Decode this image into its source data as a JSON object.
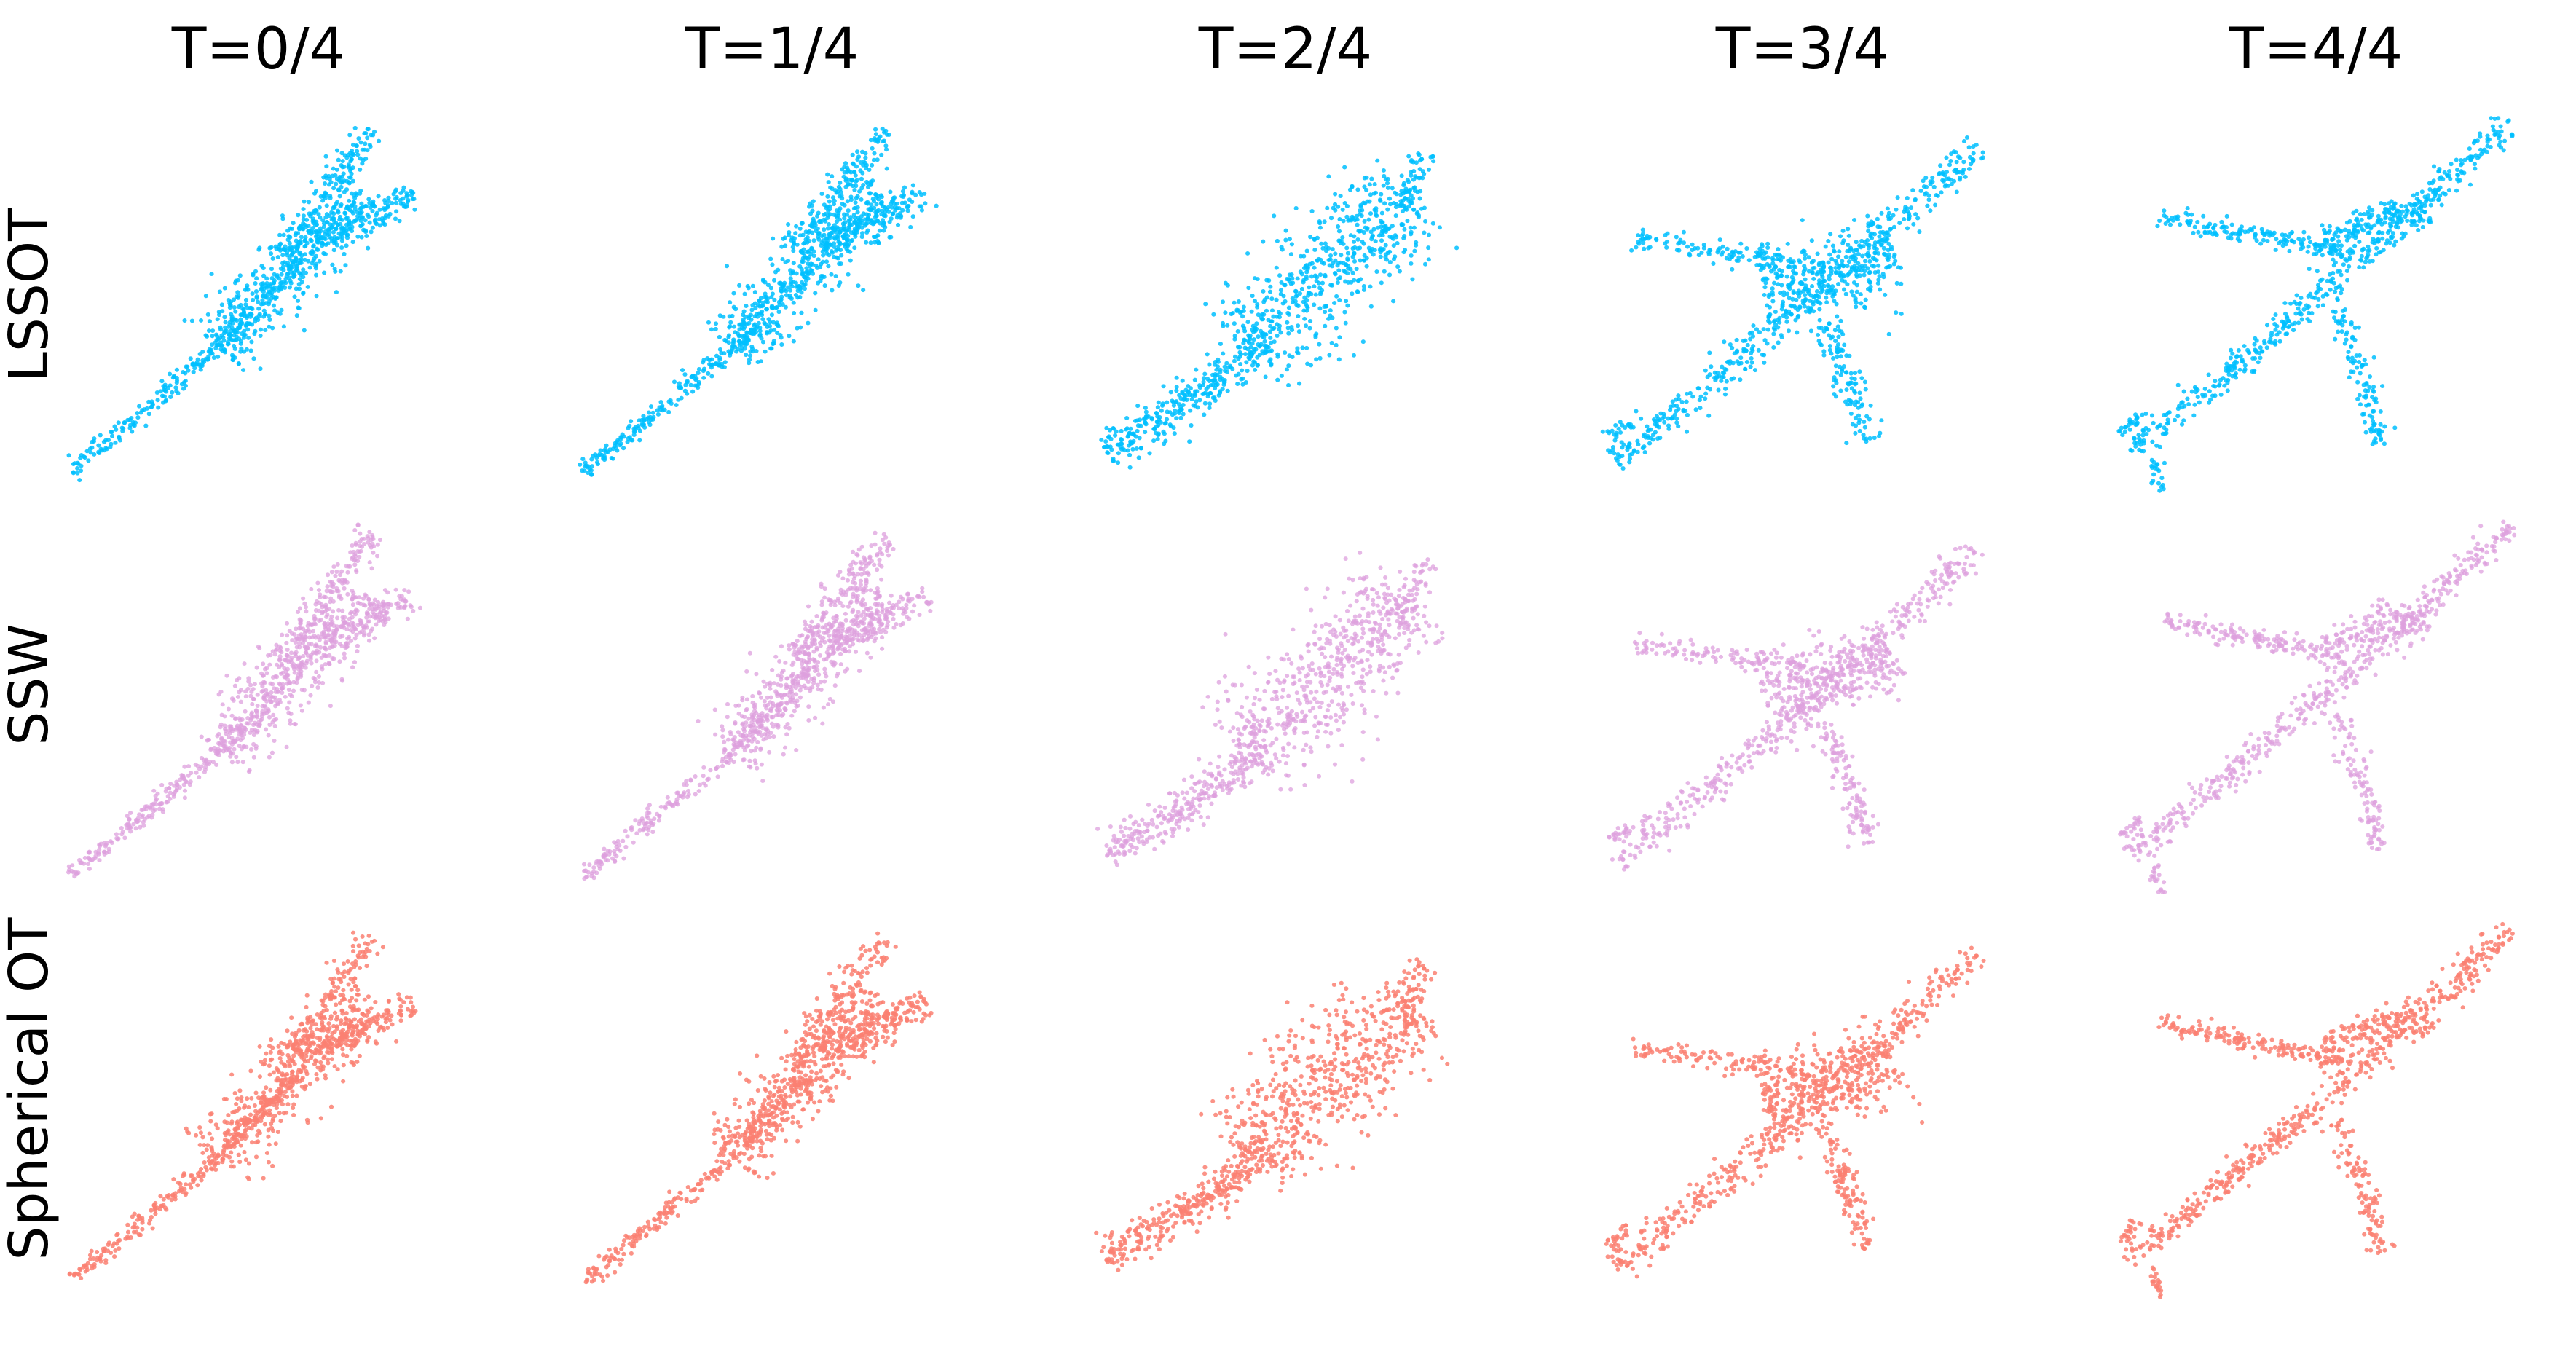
{
  "figure": {
    "column_titles": [
      "T=0/4",
      "T=1/4",
      "T=2/4",
      "T=3/4",
      "T=4/4"
    ],
    "rows": [
      {
        "label": "LSSOT",
        "color": "#00BFFF"
      },
      {
        "label": "SSW",
        "color": "#DDA0DD"
      },
      {
        "label": "Spherical OT",
        "color": "#FA8072"
      }
    ]
  }
}
